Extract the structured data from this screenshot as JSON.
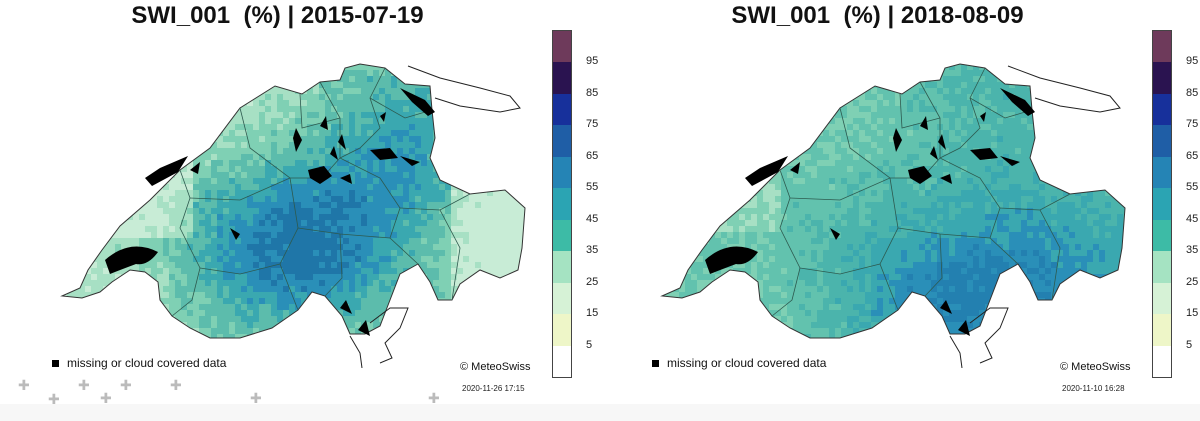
{
  "panels": [
    {
      "title": "SWI_001  (%) | 2015-07-19",
      "missing_label": "missing or cloud covered data",
      "credit": "© MeteoSwiss",
      "timestamp": "2020-11-26 17:15",
      "palette": [
        "#c8ecd6",
        "#a7e0c4",
        "#7fd0b4",
        "#5cbcac",
        "#3aa8b0",
        "#2a8fb8",
        "#1f76a8"
      ]
    },
    {
      "title": "SWI_001  (%) | 2018-08-09",
      "missing_label": "missing or cloud covered data",
      "credit": "© MeteoSwiss",
      "timestamp": "2020-11-10 16:28",
      "palette": [
        "#a7e0c4",
        "#7fd0b4",
        "#62c2ae",
        "#4bb4ac",
        "#3aa8b0",
        "#2a8fb8",
        "#2380b0"
      ]
    }
  ],
  "colorbar": {
    "ticks": [
      "95",
      "85",
      "75",
      "65",
      "55",
      "45",
      "35",
      "25",
      "15",
      "5"
    ],
    "colors": [
      "#6e3a5b",
      "#2a1350",
      "#17309b",
      "#1f5ea6",
      "#2584b5",
      "#2ba4b3",
      "#3dbba6",
      "#a5e3c2",
      "#d6f2d6",
      "#eef6c8",
      "#ffffff"
    ]
  }
}
